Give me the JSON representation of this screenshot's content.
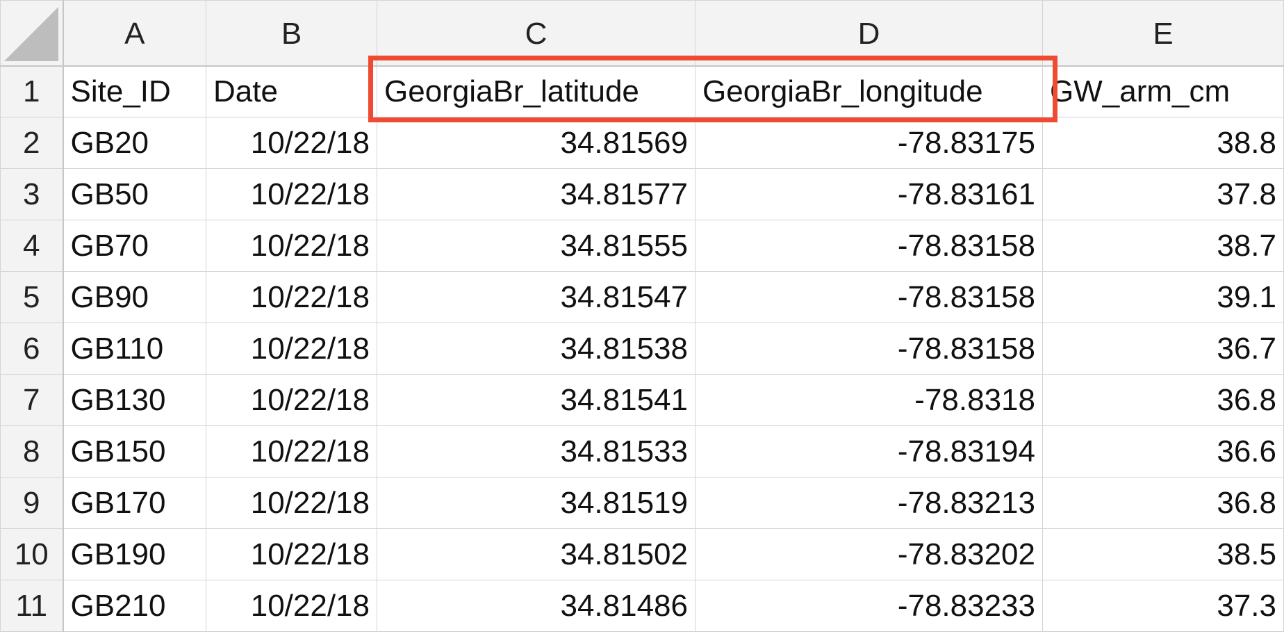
{
  "column_headers": [
    "A",
    "B",
    "C",
    "D",
    "E"
  ],
  "rows": [
    {
      "row": "1",
      "cells": [
        "Site_ID",
        "Date",
        "GeorgiaBr_latitude",
        "GeorgiaBr_longitude",
        "GW_arm_cm"
      ]
    },
    {
      "row": "2",
      "cells": [
        "GB20",
        "10/22/18",
        "34.81569",
        "-78.83175",
        "38.8"
      ]
    },
    {
      "row": "3",
      "cells": [
        "GB50",
        "10/22/18",
        "34.81577",
        "-78.83161",
        "37.8"
      ]
    },
    {
      "row": "4",
      "cells": [
        "GB70",
        "10/22/18",
        "34.81555",
        "-78.83158",
        "38.7"
      ]
    },
    {
      "row": "5",
      "cells": [
        "GB90",
        "10/22/18",
        "34.81547",
        "-78.83158",
        "39.1"
      ]
    },
    {
      "row": "6",
      "cells": [
        "GB110",
        "10/22/18",
        "34.81538",
        "-78.83158",
        "36.7"
      ]
    },
    {
      "row": "7",
      "cells": [
        "GB130",
        "10/22/18",
        "34.81541",
        "-78.8318",
        "36.8"
      ]
    },
    {
      "row": "8",
      "cells": [
        "GB150",
        "10/22/18",
        "34.81533",
        "-78.83194",
        "36.6"
      ]
    },
    {
      "row": "9",
      "cells": [
        "GB170",
        "10/22/18",
        "34.81519",
        "-78.83213",
        "36.8"
      ]
    },
    {
      "row": "10",
      "cells": [
        "GB190",
        "10/22/18",
        "34.81502",
        "-78.83202",
        "38.5"
      ]
    },
    {
      "row": "11",
      "cells": [
        "GB210",
        "10/22/18",
        "34.81486",
        "-78.83233",
        "37.3"
      ]
    }
  ],
  "colors": {
    "highlight": "#ee4b32",
    "header_bg": "#f3f3f3",
    "gridline": "#d4d4d4"
  }
}
